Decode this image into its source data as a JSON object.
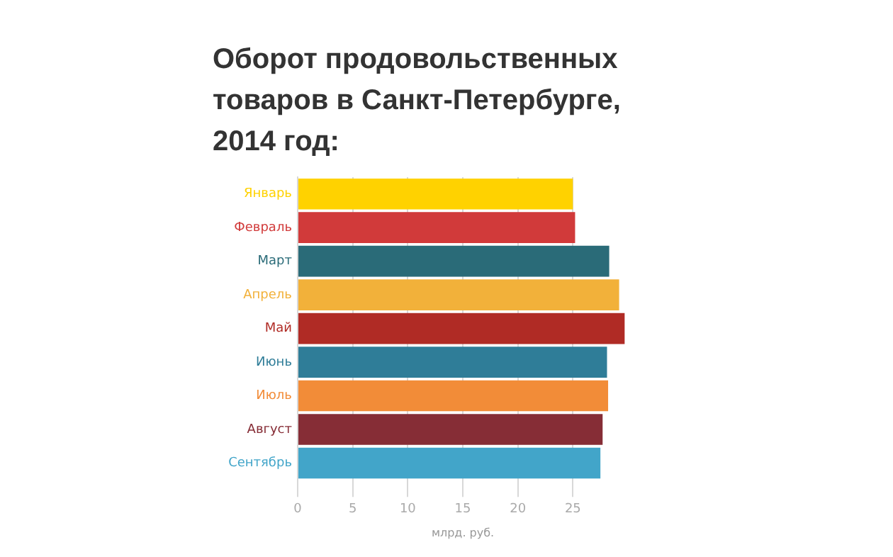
{
  "chart_data": {
    "type": "bar",
    "orientation": "horizontal",
    "title": "Оборот продовольственных товаров в Санкт-Петербурге, 2014 год:",
    "xlabel": "млрд. руб.",
    "categories": [
      "Январь",
      "Февраль",
      "Март",
      "Апрель",
      "Май",
      "Июнь",
      "Июль",
      "Август",
      "Сентябрь"
    ],
    "values": [
      25.0,
      25.2,
      28.3,
      29.2,
      29.7,
      28.1,
      28.2,
      27.7,
      27.5
    ],
    "colors": [
      "#ffd200",
      "#d13a3a",
      "#2a6b78",
      "#f2b13a",
      "#b02b25",
      "#2f7d98",
      "#f28c38",
      "#862d36",
      "#42a5c9"
    ],
    "xlim": [
      0,
      30
    ],
    "xticks": [
      0,
      5,
      10,
      15,
      20,
      25
    ],
    "grid": "x",
    "legend": false
  }
}
